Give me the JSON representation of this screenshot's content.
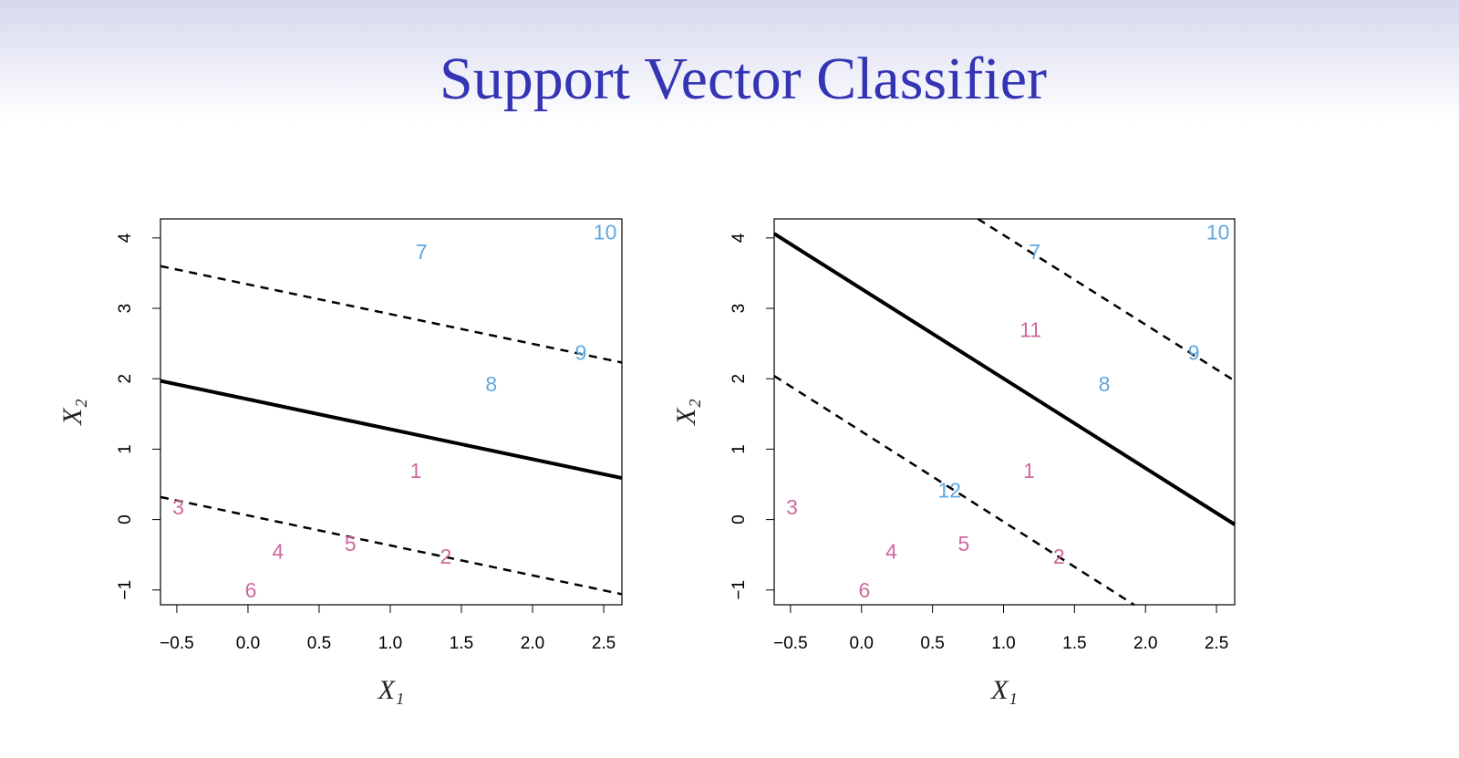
{
  "title": "Support Vector Classifier",
  "chart_data": [
    {
      "type": "scatter",
      "x_label": "X₁",
      "y_label": "X₂",
      "xlim": [
        -0.615,
        2.628
      ],
      "ylim": [
        -1.21,
        4.27
      ],
      "xticks": [
        {
          "value": -0.5,
          "label": "−0.5"
        },
        {
          "value": 0,
          "label": "0.0"
        },
        0.5,
        {
          "value": 1,
          "label": "1.0"
        },
        1.5,
        {
          "value": 2,
          "label": "2.0"
        },
        2.5
      ],
      "yticks": [
        {
          "value": -1,
          "label": "−1"
        },
        0,
        1,
        2,
        3,
        4
      ],
      "series": [
        {
          "color": "#cf6a9f",
          "x": [
            1.18,
            1.39,
            -0.49,
            0.21,
            0.72,
            0.02
          ],
          "y": [
            0.67,
            -0.55,
            0.15,
            -0.48,
            -0.37,
            -1.03
          ],
          "labels": [
            "1",
            "2",
            "3",
            "4",
            "5",
            "6"
          ]
        },
        {
          "color": "#5fa8e0",
          "x": [
            1.22,
            1.71,
            2.34,
            2.51
          ],
          "y": [
            3.78,
            1.9,
            2.35,
            4.06
          ],
          "labels": [
            "7",
            "8",
            "9",
            "10"
          ]
        }
      ],
      "lines": [
        {
          "x": [
            -0.615,
            2.628
          ],
          "y": [
            1.97,
            0.59
          ],
          "dashed": false
        },
        {
          "x": [
            -0.615,
            2.628
          ],
          "y": [
            3.6,
            2.23
          ],
          "dashed": true
        },
        {
          "x": [
            -0.615,
            2.628
          ],
          "y": [
            0.32,
            -1.06
          ],
          "dashed": true
        }
      ]
    },
    {
      "type": "scatter",
      "x_label": "X₁",
      "y_label": "X₂",
      "xlim": [
        -0.615,
        2.628
      ],
      "ylim": [
        -1.21,
        4.27
      ],
      "xticks": [
        {
          "value": -0.5,
          "label": "−0.5"
        },
        {
          "value": 0,
          "label": "0.0"
        },
        0.5,
        {
          "value": 1,
          "label": "1.0"
        },
        1.5,
        {
          "value": 2,
          "label": "2.0"
        },
        2.5
      ],
      "yticks": [
        {
          "value": -1,
          "label": "−1"
        },
        0,
        1,
        2,
        3,
        4
      ],
      "series": [
        {
          "color": "#cf6a9f",
          "x": [
            1.18,
            1.39,
            -0.49,
            0.21,
            0.72,
            0.02,
            1.19
          ],
          "y": [
            0.67,
            -0.55,
            0.15,
            -0.48,
            -0.37,
            -1.03,
            2.67
          ],
          "labels": [
            "1",
            "2",
            "3",
            "4",
            "5",
            "6",
            "11"
          ]
        },
        {
          "color": "#5fa8e0",
          "x": [
            1.22,
            1.71,
            2.34,
            2.51,
            0.62
          ],
          "y": [
            3.78,
            1.9,
            2.35,
            4.06,
            0.39
          ],
          "labels": [
            "7",
            "8",
            "9",
            "10",
            "12"
          ]
        }
      ],
      "lines": [
        {
          "x": [
            -0.615,
            2.628
          ],
          "y": [
            4.06,
            -0.07
          ],
          "dashed": false
        },
        {
          "x": [
            0.82,
            2.628
          ],
          "y": [
            4.27,
            1.97
          ],
          "dashed": true
        },
        {
          "x": [
            -0.615,
            1.92
          ],
          "y": [
            2.04,
            -1.21
          ],
          "dashed": true
        }
      ]
    }
  ]
}
